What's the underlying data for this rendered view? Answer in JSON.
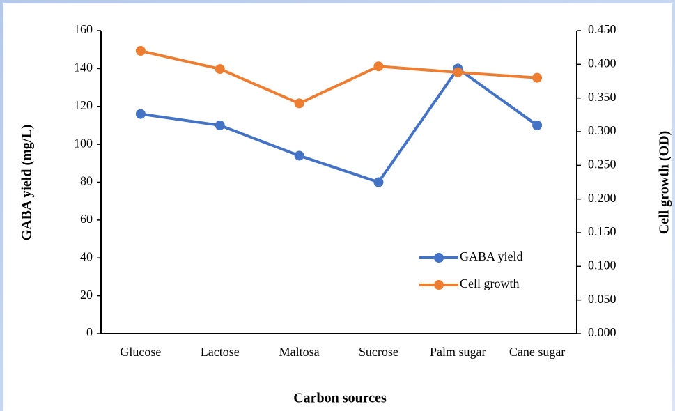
{
  "chart_data": {
    "type": "line",
    "x_label": "Carbon sources",
    "y_label": "GABA yield (mg/L)",
    "y2_label": "Cell growth (OD)",
    "categories": [
      "Glucose",
      "Lactose",
      "Maltosa",
      "Sucrose",
      "Palm sugar",
      "Cane sugar"
    ],
    "series": [
      {
        "name": "GABA yield",
        "color": "#4472c4",
        "values": [
          116,
          110,
          94,
          80,
          140,
          110
        ]
      },
      {
        "name": "Cell growth",
        "color": "#ed7d31",
        "axis": "y2",
        "values": [
          0.42,
          0.393,
          0.342,
          0.397,
          0.388,
          0.38
        ]
      }
    ],
    "ylim": [
      0,
      160
    ],
    "yticks": [
      0,
      20,
      40,
      60,
      80,
      100,
      120,
      140,
      160
    ],
    "y2lim": [
      0,
      0.45
    ],
    "y2ticks": [
      {
        "value": 0,
        "label": "0.000"
      },
      {
        "value": 0.05,
        "label": "0.050"
      },
      {
        "value": 0.1,
        "label": "0.100"
      },
      {
        "value": 0.15,
        "label": "0.150"
      },
      {
        "value": 0.2,
        "label": "0.200"
      },
      {
        "value": 0.25,
        "label": "0.250"
      },
      {
        "value": 0.3,
        "label": "0.300"
      },
      {
        "value": 0.35,
        "label": "0.350"
      },
      {
        "value": 0.4,
        "label": "0.400"
      },
      {
        "value": 0.45,
        "label": "0.450"
      }
    ],
    "grid": false,
    "legend": "lower right"
  }
}
